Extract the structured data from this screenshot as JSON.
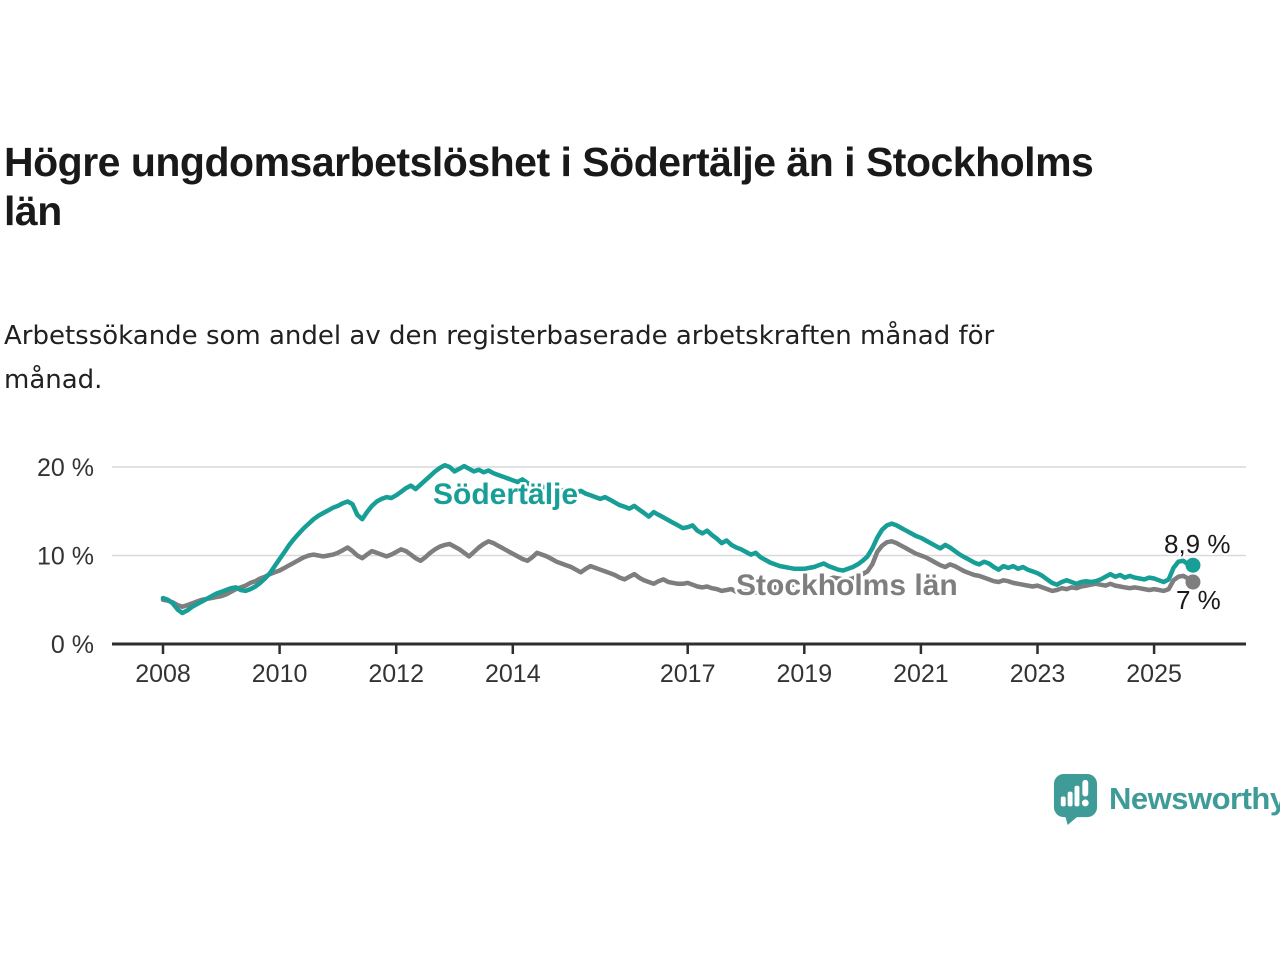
{
  "header": {
    "title_line1": "Högre ungdomsarbetslöshet i Södertälje än i Stockholms",
    "title_line2": "län",
    "subtitle_line1": "Arbetssökande som andel av den registerbaserade arbetskraften månad för",
    "subtitle_line2": "månad."
  },
  "branding": {
    "wordmark": "Newsworthy",
    "brand_color": "#3f9b97",
    "logo_icon": "speech-bubble-bar-chart-icon"
  },
  "colors": {
    "title_text": "#191919",
    "axis_text": "#333333",
    "axis_line": "#2e2e2e",
    "gridline": "#d9d9d9",
    "sodertalje_teal": "#179e96",
    "stockholm_gray": "#7e7e7e",
    "value_label_text": "#1a1a1a",
    "background": "#ffffff"
  },
  "chart_data": {
    "type": "line",
    "title": "Högre ungdomsarbetslöshet i Södertälje än i Stockholms län",
    "subtitle": "Arbetssökande som andel av den registerbaserade arbetskraften månad för månad.",
    "unit": "%",
    "x_start_year": 2008,
    "x_start_month": 1,
    "points_per_year": 12,
    "xlim": [
      2007.1,
      2026.6
    ],
    "ylim": [
      0,
      22.5
    ],
    "grid": "horizontal-only",
    "x_tick_labels": [
      "2008",
      "2010",
      "2012",
      "2014",
      "2017",
      "2019",
      "2021",
      "2023",
      "2025"
    ],
    "x_tick_years": [
      2008,
      2010,
      2012,
      2014,
      2017,
      2019,
      2021,
      2023,
      2025
    ],
    "y_ticks": [
      {
        "value": 0,
        "label": "0 %",
        "gridline": false
      },
      {
        "value": 10,
        "label": "10 %",
        "gridline": true
      },
      {
        "value": 20,
        "label": "20 %",
        "gridline": true
      }
    ],
    "legend_position": "inline-labels-on-lines",
    "series": [
      {
        "name": "Södertälje",
        "color": "#179e96",
        "end_value_label": "8,9 %",
        "end_value": 8.9,
        "values": [
          5.2,
          5.0,
          4.6,
          3.9,
          3.5,
          3.8,
          4.2,
          4.5,
          4.8,
          5.1,
          5.4,
          5.7,
          5.9,
          6.1,
          6.3,
          6.4,
          6.1,
          6.0,
          6.2,
          6.5,
          6.9,
          7.4,
          8.0,
          8.8,
          9.6,
          10.4,
          11.2,
          11.9,
          12.5,
          13.1,
          13.6,
          14.1,
          14.5,
          14.8,
          15.1,
          15.4,
          15.6,
          15.9,
          16.1,
          15.8,
          14.6,
          14.1,
          14.9,
          15.6,
          16.1,
          16.4,
          16.6,
          16.5,
          16.8,
          17.2,
          17.6,
          17.9,
          17.5,
          18.0,
          18.5,
          19.0,
          19.5,
          19.9,
          20.2,
          20.0,
          19.5,
          19.8,
          20.1,
          19.8,
          19.5,
          19.7,
          19.4,
          19.6,
          19.3,
          19.1,
          18.9,
          18.7,
          18.5,
          18.3,
          18.6,
          18.2,
          17.9,
          18.1,
          17.8,
          17.6,
          17.8,
          17.5,
          17.3,
          17.5,
          17.3,
          17.1,
          17.3,
          17.0,
          16.8,
          16.6,
          16.4,
          16.6,
          16.3,
          16.0,
          15.7,
          15.5,
          15.3,
          15.6,
          15.2,
          14.8,
          14.4,
          14.9,
          14.6,
          14.3,
          14.0,
          13.7,
          13.4,
          13.1,
          13.2,
          13.4,
          12.8,
          12.5,
          12.8,
          12.3,
          11.9,
          11.4,
          11.7,
          11.2,
          10.9,
          10.7,
          10.4,
          10.1,
          10.3,
          9.8,
          9.5,
          9.2,
          9.0,
          8.8,
          8.7,
          8.6,
          8.5,
          8.5,
          8.5,
          8.6,
          8.7,
          8.9,
          9.1,
          8.8,
          8.6,
          8.4,
          8.3,
          8.5,
          8.7,
          9.0,
          9.4,
          9.9,
          10.8,
          12.0,
          12.9,
          13.4,
          13.6,
          13.4,
          13.1,
          12.8,
          12.5,
          12.2,
          12.0,
          11.7,
          11.4,
          11.1,
          10.8,
          11.2,
          10.9,
          10.5,
          10.1,
          9.8,
          9.5,
          9.2,
          9.0,
          9.3,
          9.1,
          8.7,
          8.4,
          8.8,
          8.6,
          8.8,
          8.5,
          8.7,
          8.4,
          8.2,
          8.0,
          7.7,
          7.3,
          6.9,
          6.7,
          7.0,
          7.2,
          7.0,
          6.8,
          7.0,
          7.1,
          7.0,
          7.1,
          7.3,
          7.6,
          7.9,
          7.6,
          7.8,
          7.5,
          7.7,
          7.5,
          7.4,
          7.3,
          7.5,
          7.4,
          7.2,
          7.0,
          7.3,
          8.6,
          9.3,
          9.4,
          9.0,
          8.9
        ]
      },
      {
        "name": "Stockholms län",
        "color": "#7e7e7e",
        "end_value_label": "7 %",
        "end_value": 7.0,
        "values": [
          5.0,
          4.9,
          4.7,
          4.4,
          4.2,
          4.4,
          4.6,
          4.8,
          5.0,
          5.1,
          5.2,
          5.3,
          5.4,
          5.6,
          5.9,
          6.2,
          6.4,
          6.6,
          6.9,
          7.1,
          7.4,
          7.6,
          7.9,
          8.1,
          8.3,
          8.6,
          8.9,
          9.2,
          9.5,
          9.8,
          10.0,
          10.1,
          10.0,
          9.9,
          10.0,
          10.1,
          10.3,
          10.6,
          10.9,
          10.5,
          10.0,
          9.7,
          10.1,
          10.5,
          10.3,
          10.1,
          9.9,
          10.1,
          10.4,
          10.7,
          10.5,
          10.1,
          9.7,
          9.4,
          9.8,
          10.3,
          10.7,
          11.0,
          11.2,
          11.3,
          11.0,
          10.7,
          10.3,
          9.9,
          10.4,
          10.9,
          11.3,
          11.6,
          11.4,
          11.1,
          10.8,
          10.5,
          10.2,
          9.9,
          9.6,
          9.4,
          9.8,
          10.3,
          10.1,
          9.9,
          9.6,
          9.3,
          9.1,
          8.9,
          8.7,
          8.4,
          8.1,
          8.5,
          8.8,
          8.6,
          8.4,
          8.2,
          8.0,
          7.8,
          7.5,
          7.3,
          7.6,
          7.9,
          7.5,
          7.2,
          7.0,
          6.8,
          7.1,
          7.3,
          7.0,
          6.9,
          6.8,
          6.8,
          6.9,
          6.7,
          6.5,
          6.4,
          6.5,
          6.3,
          6.2,
          6.0,
          6.1,
          6.2,
          5.9,
          5.8,
          6.0,
          5.9,
          5.8,
          5.9,
          6.1,
          6.2,
          6.4,
          6.5,
          6.6,
          6.7,
          6.7,
          6.8,
          6.8,
          6.9,
          7.0,
          7.1,
          7.2,
          7.3,
          7.5,
          7.4,
          7.3,
          7.3,
          7.4,
          7.7,
          7.9,
          8.2,
          9.0,
          10.4,
          11.1,
          11.5,
          11.6,
          11.4,
          11.1,
          10.8,
          10.5,
          10.2,
          10.0,
          9.8,
          9.5,
          9.2,
          8.9,
          8.7,
          9.0,
          8.8,
          8.5,
          8.2,
          8.0,
          7.8,
          7.7,
          7.5,
          7.3,
          7.1,
          7.0,
          7.2,
          7.1,
          6.9,
          6.8,
          6.7,
          6.6,
          6.5,
          6.6,
          6.4,
          6.2,
          6.0,
          6.1,
          6.3,
          6.2,
          6.4,
          6.3,
          6.5,
          6.6,
          6.7,
          6.8,
          6.7,
          6.6,
          6.8,
          6.6,
          6.5,
          6.4,
          6.3,
          6.4,
          6.3,
          6.2,
          6.1,
          6.2,
          6.1,
          6.0,
          6.2,
          7.2,
          7.6,
          7.7,
          7.4,
          7.0
        ]
      }
    ]
  }
}
